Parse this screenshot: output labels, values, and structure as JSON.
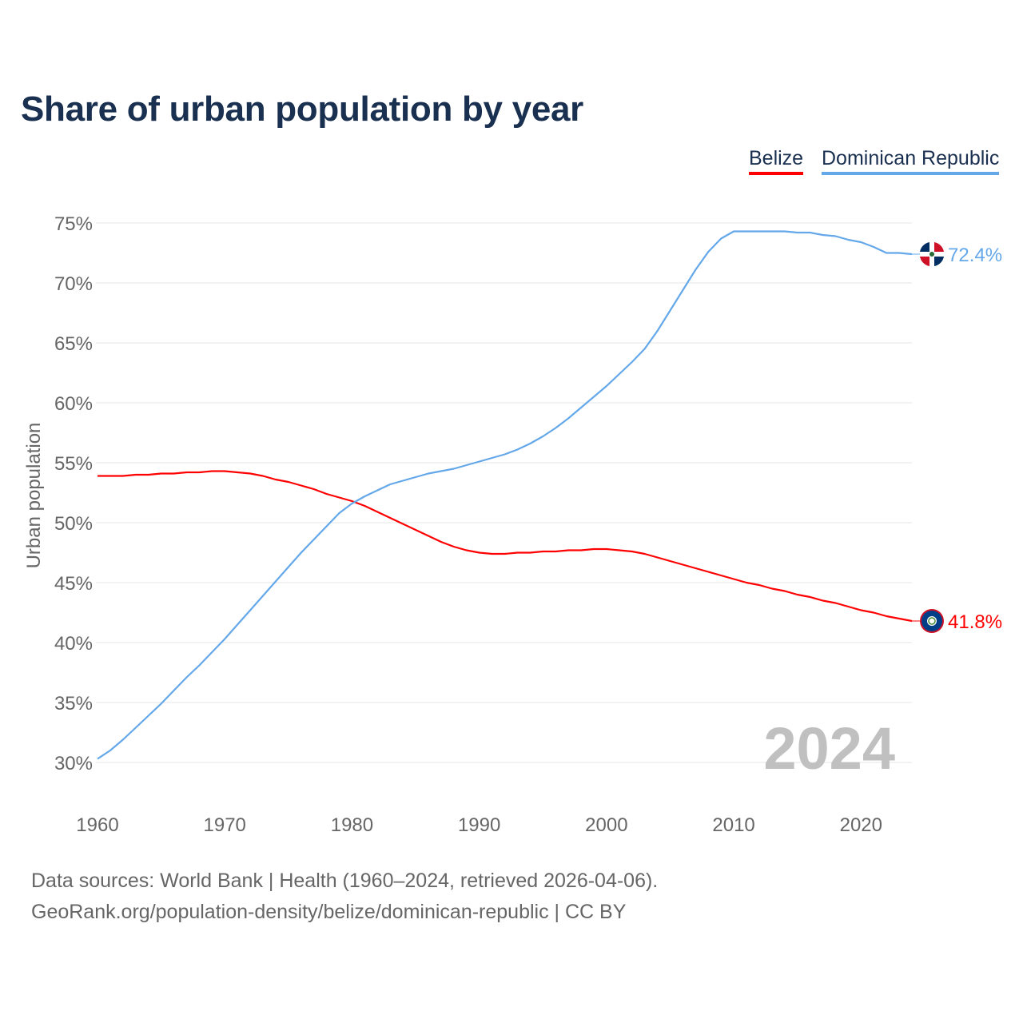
{
  "chart_data": {
    "type": "line",
    "title": "Share of urban population by year",
    "ylabel": "Urban population",
    "xlabel": "",
    "xlim": [
      1960,
      2024
    ],
    "ylim": [
      30,
      75
    ],
    "grid": true,
    "legend_position": "top-right",
    "x_ticks": [
      "1960",
      "1970",
      "1980",
      "1990",
      "2000",
      "2010",
      "2020"
    ],
    "y_ticks": [
      "30%",
      "35%",
      "40%",
      "45%",
      "50%",
      "55%",
      "60%",
      "65%",
      "70%",
      "75%"
    ],
    "year_label": "2024",
    "x_start": 1960,
    "series": [
      {
        "name": "Belize",
        "color": "#ff0000",
        "end_label": "41.8%",
        "flag": "belize-flag",
        "values": [
          53.9,
          53.9,
          53.9,
          54.0,
          54.0,
          54.1,
          54.1,
          54.2,
          54.2,
          54.3,
          54.3,
          54.2,
          54.1,
          53.9,
          53.6,
          53.4,
          53.1,
          52.8,
          52.4,
          52.1,
          51.8,
          51.4,
          50.9,
          50.4,
          49.9,
          49.4,
          48.9,
          48.4,
          48.0,
          47.7,
          47.5,
          47.4,
          47.4,
          47.5,
          47.5,
          47.6,
          47.6,
          47.7,
          47.7,
          47.8,
          47.8,
          47.7,
          47.6,
          47.4,
          47.1,
          46.8,
          46.5,
          46.2,
          45.9,
          45.6,
          45.3,
          45.0,
          44.8,
          44.5,
          44.3,
          44.0,
          43.8,
          43.5,
          43.3,
          43.0,
          42.7,
          42.5,
          42.2,
          42.0,
          41.8
        ]
      },
      {
        "name": "Dominican Republic",
        "color": "#64a8ea",
        "end_label": "72.4%",
        "flag": "dominican-republic-flag",
        "values": [
          30.3,
          31.0,
          31.9,
          32.9,
          33.9,
          34.9,
          36.0,
          37.1,
          38.1,
          39.2,
          40.3,
          41.5,
          42.7,
          43.9,
          45.1,
          46.3,
          47.5,
          48.6,
          49.7,
          50.8,
          51.6,
          52.2,
          52.7,
          53.2,
          53.5,
          53.8,
          54.1,
          54.3,
          54.5,
          54.8,
          55.1,
          55.4,
          55.7,
          56.1,
          56.6,
          57.2,
          57.9,
          58.7,
          59.6,
          60.5,
          61.4,
          62.4,
          63.4,
          64.5,
          66.0,
          67.7,
          69.4,
          71.1,
          72.6,
          73.7,
          74.3,
          74.3,
          74.3,
          74.3,
          74.3,
          74.2,
          74.2,
          74.0,
          73.9,
          73.6,
          73.4,
          73.0,
          72.5,
          72.5,
          72.4
        ]
      }
    ]
  },
  "footer": {
    "sources": "Data sources: World Bank | Health (1960–2024, retrieved 2026-04-06).",
    "attribution": "GeoRank.org/population-density/belize/dominican-republic | CC BY"
  }
}
